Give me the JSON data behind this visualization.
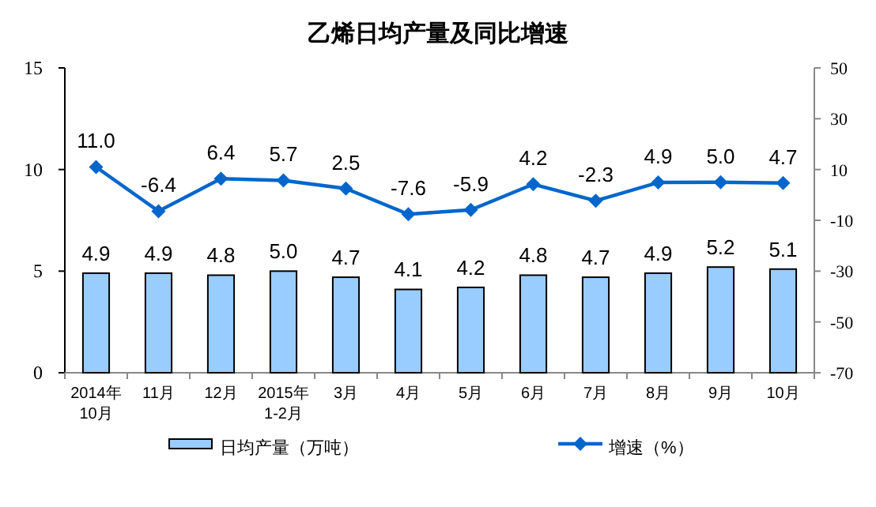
{
  "chart_data": {
    "type": "bar",
    "title": "乙烯日均产量及同比增速",
    "categories": [
      "2014年\n10月",
      "11月",
      "12月",
      "2015年\n1-2月",
      "3月",
      "4月",
      "5月",
      "6月",
      "7月",
      "8月",
      "9月",
      "10月"
    ],
    "series": [
      {
        "name": "日均产量（万吨）",
        "color": "#99ccff",
        "values": [
          4.9,
          4.9,
          4.8,
          5.0,
          4.7,
          4.1,
          4.2,
          4.8,
          4.7,
          4.9,
          5.2,
          5.1
        ],
        "value_labels": [
          "4.9",
          "4.9",
          "4.8",
          "5.0",
          "4.7",
          "4.1",
          "4.2",
          "4.8",
          "4.7",
          "4.9",
          "5.2",
          "5.1"
        ]
      },
      {
        "name": "增速（%）",
        "type": "line",
        "axis": "y2",
        "color": "#0066cc",
        "marker": "diamond",
        "values": [
          11.0,
          -6.4,
          6.4,
          5.7,
          2.5,
          -7.6,
          -5.9,
          4.2,
          -2.3,
          4.9,
          5.0,
          4.7
        ],
        "value_labels": [
          "11.0",
          "-6.4",
          "6.4",
          "5.7",
          "2.5",
          "-7.6",
          "-5.9",
          "4.2",
          "-2.3",
          "4.9",
          "5.0",
          "4.7"
        ]
      }
    ],
    "ylim": [
      0,
      15
    ],
    "yticks": [
      0,
      5,
      10,
      15
    ],
    "y2lim": [
      -70,
      50
    ],
    "y2ticks": [
      -70,
      -50,
      -30,
      -10,
      10,
      30,
      50
    ],
    "legend": "bottom",
    "grid": false
  }
}
